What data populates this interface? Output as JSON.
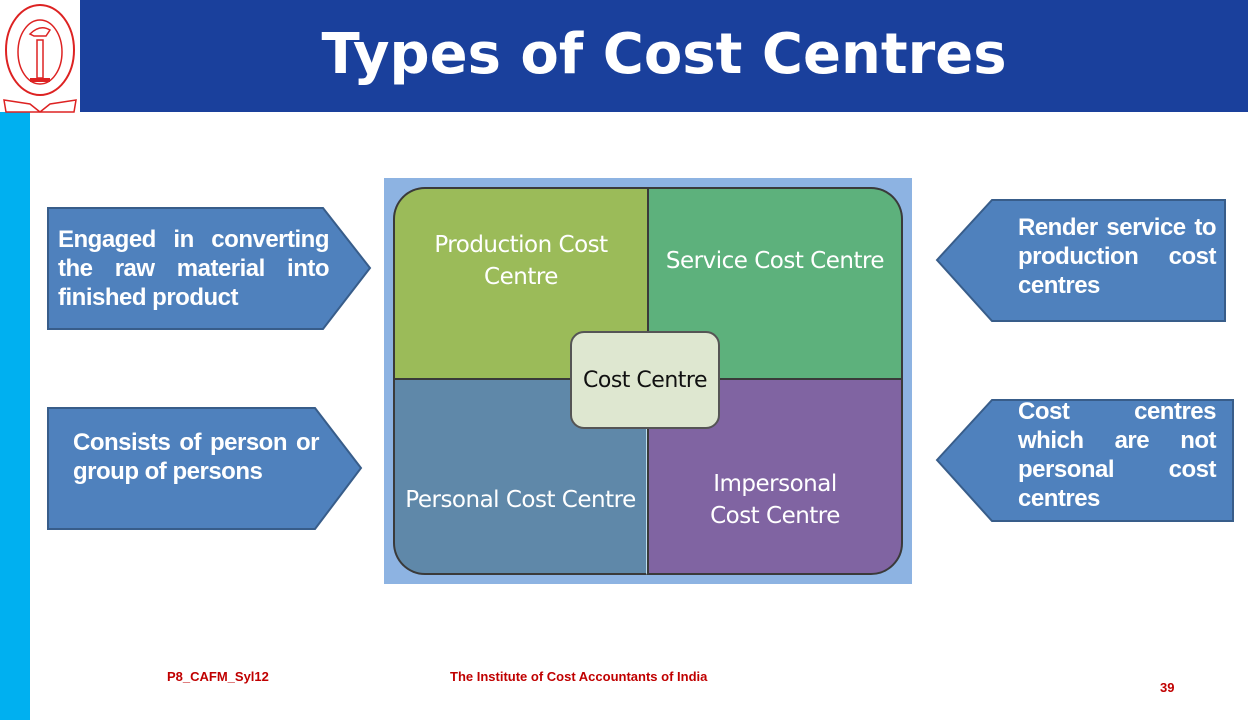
{
  "header": {
    "title": "Types of Cost Centres",
    "logo_text": "THE INSTITUTE OF COST ACCOUNTANTS OF INDIA"
  },
  "colors": {
    "header": "#1a409c",
    "strip": "#00b0f0",
    "callout": "#4f81bd",
    "production": "#9bbb59",
    "service": "#5db17c",
    "personal": "#5f88a9",
    "impersonal": "#8064a2",
    "footer": "#c00000"
  },
  "diagram": {
    "center": "Cost Centre",
    "production": "Production Cost Centre",
    "service": "Service Cost Centre",
    "personal": "Personal Cost Centre",
    "impersonal": "Impersonal Cost Centre"
  },
  "callouts": {
    "production": "Engaged in converting the raw material into finished product",
    "service": "Render service to production cost centres",
    "personal": "Consists of person or group of persons",
    "impersonal": "Cost centres which are not personal cost centres"
  },
  "footer": {
    "code": "P8_CAFM_Syl12",
    "institute": "The Institute of Cost Accountants of India",
    "page": "39"
  }
}
